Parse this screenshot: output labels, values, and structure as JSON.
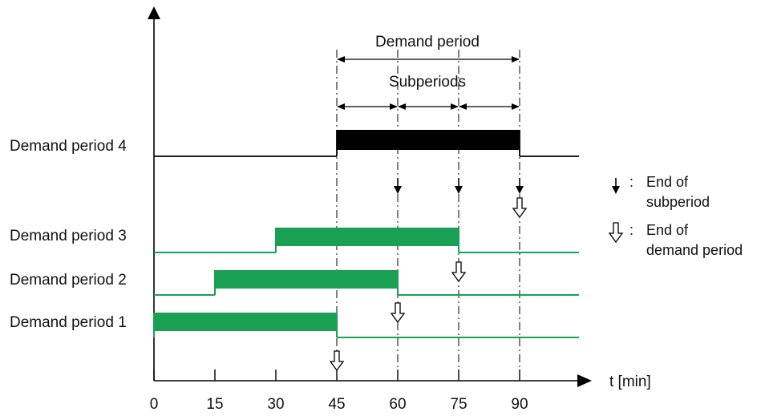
{
  "diagram": {
    "title_demand_period": "Demand period",
    "title_subperiods": "Subperiods",
    "rows": [
      {
        "label": "Demand period 4",
        "start": 45,
        "end": 90,
        "color": "#000000",
        "kind": "active"
      },
      {
        "label": "Demand period 3",
        "start": 30,
        "end": 75,
        "color": "#1aa055",
        "kind": "history"
      },
      {
        "label": "Demand period 2",
        "start": 15,
        "end": 60,
        "color": "#1aa055",
        "kind": "history"
      },
      {
        "label": "Demand period 1",
        "start": 0,
        "end": 45,
        "color": "#1aa055",
        "kind": "history"
      }
    ],
    "x_axis": {
      "ticks": [
        "0",
        "15",
        "30",
        "45",
        "60",
        "75",
        "90"
      ],
      "values": [
        0,
        15,
        30,
        45,
        60,
        75,
        90
      ],
      "label": "t [min]"
    },
    "subperiod_ends": [
      60,
      75,
      90
    ],
    "demand_period_ends": [
      45,
      60,
      75,
      90
    ],
    "legend": {
      "subperiod_line1": "End of",
      "subperiod_line2": "subperiod",
      "demand_line1": "End of",
      "demand_line2": "demand period",
      "colon": ":"
    }
  }
}
